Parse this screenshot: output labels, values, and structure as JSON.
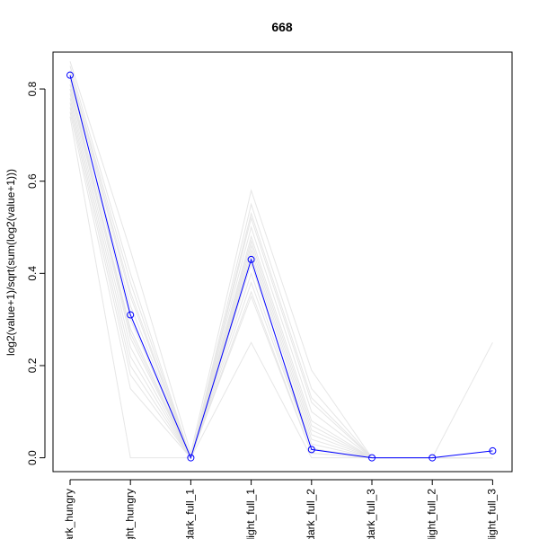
{
  "chart_data": {
    "type": "line",
    "title": "668",
    "xlabel": "",
    "ylabel": "log2(value+1)/sqrt(sum(log2(value+1)))",
    "categories": [
      "dark_hungry",
      "light_hungry",
      "dark_full_1",
      "light_full_1",
      "dark_full_2",
      "dark_full_3",
      "light_full_2",
      "light_full_3"
    ],
    "yticks": [
      0.0,
      0.2,
      0.4,
      0.6,
      0.8
    ],
    "ylim": [
      -0.03,
      0.88
    ],
    "grid": false,
    "highlight": {
      "color": "#0000ff",
      "values": [
        0.83,
        0.31,
        0.0,
        0.43,
        0.018,
        0.0,
        0.0,
        0.015
      ]
    },
    "background_color": "#e6e6e6",
    "background_series": [
      [
        0.86,
        0.45,
        0.01,
        0.58,
        0.19,
        0.0,
        0.0,
        0.0
      ],
      [
        0.85,
        0.4,
        0.0,
        0.55,
        0.15,
        0.0,
        0.0,
        0.0
      ],
      [
        0.84,
        0.38,
        0.0,
        0.52,
        0.12,
        0.0,
        0.0,
        0.0
      ],
      [
        0.83,
        0.35,
        0.0,
        0.5,
        0.1,
        0.0,
        0.0,
        0.0
      ],
      [
        0.82,
        0.33,
        0.0,
        0.48,
        0.08,
        0.0,
        0.0,
        0.0
      ],
      [
        0.81,
        0.3,
        0.0,
        0.46,
        0.06,
        0.0,
        0.0,
        0.0
      ],
      [
        0.8,
        0.28,
        0.0,
        0.45,
        0.05,
        0.0,
        0.0,
        0.0
      ],
      [
        0.8,
        0.26,
        0.0,
        0.44,
        0.04,
        0.0,
        0.0,
        0.0
      ],
      [
        0.79,
        0.24,
        0.0,
        0.42,
        0.03,
        0.0,
        0.0,
        0.0
      ],
      [
        0.78,
        0.22,
        0.0,
        0.4,
        0.02,
        0.0,
        0.0,
        0.0
      ],
      [
        0.77,
        0.2,
        0.0,
        0.38,
        0.02,
        0.0,
        0.0,
        0.0
      ],
      [
        0.76,
        0.18,
        0.0,
        0.36,
        0.01,
        0.0,
        0.0,
        0.0
      ],
      [
        0.75,
        0.15,
        0.0,
        0.35,
        0.01,
        0.0,
        0.0,
        0.0
      ],
      [
        0.74,
        0.0,
        0.0,
        0.25,
        0.0,
        0.0,
        0.0,
        0.25
      ],
      [
        0.84,
        0.36,
        0.0,
        0.53,
        0.13,
        0.0,
        0.0,
        0.0
      ],
      [
        0.81,
        0.27,
        0.0,
        0.47,
        0.07,
        0.0,
        0.0,
        0.0
      ]
    ]
  }
}
